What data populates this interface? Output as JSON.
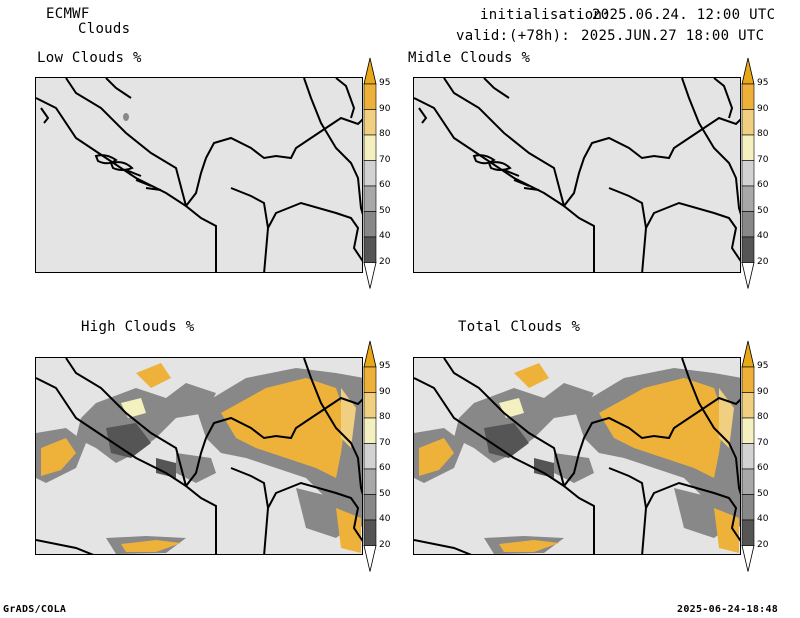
{
  "header": {
    "model": "ECMWF",
    "field": "Clouds",
    "init_label": "initialisation:",
    "init_time": "2025.06.24. 12:00 UTC",
    "valid_label": "valid:",
    "lead": "(+78h):",
    "valid_time": "2025.JUN.27 18:00 UTC"
  },
  "panels": [
    {
      "id": "low",
      "title": "Low Clouds %"
    },
    {
      "id": "mid",
      "title": "Midle Clouds %"
    },
    {
      "id": "high",
      "title": "High Clouds %"
    },
    {
      "id": "total",
      "title": "Total Clouds %"
    }
  ],
  "colorbar": {
    "levels": [
      "95",
      "90",
      "80",
      "70",
      "60",
      "50",
      "40",
      "20"
    ],
    "colors": {
      "above95": "#e8a818",
      "90-95": "#edb13a",
      "80-90": "#f0cf80",
      "70-80": "#f5f0c0",
      "60-70": "#d2d2d2",
      "50-60": "#a8a8a8",
      "40-50": "#888888",
      "20-40": "#555555",
      "below20": "#ffffff",
      "background": "#e4e4e4",
      "cloud_high": "#eeb23a"
    }
  },
  "footer": {
    "left": "GrADS/COLA",
    "right": "2025-06-24-18:48"
  }
}
